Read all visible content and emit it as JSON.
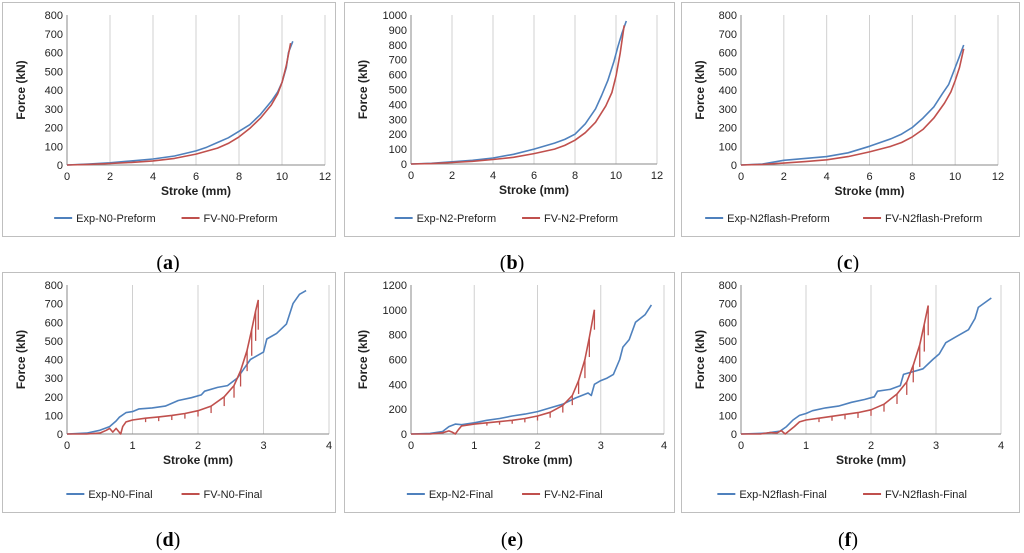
{
  "chart_data": [
    {
      "type": "line",
      "panel_label": "a",
      "xlabel": "Stroke (mm)",
      "ylabel": "Force (kN)",
      "xlim": [
        0,
        12
      ],
      "xticks": [
        0,
        2,
        4,
        6,
        8,
        10,
        12
      ],
      "ylim": [
        0,
        800
      ],
      "yticks": [
        0,
        100,
        200,
        300,
        400,
        500,
        600,
        700,
        800
      ],
      "grid": "vertical",
      "legend": "bottom",
      "series": [
        {
          "name": "Exp-N0-Preform",
          "color": "#4f81bd",
          "sawtooth": false,
          "x": [
            0,
            1,
            2,
            3,
            4,
            5,
            6,
            6.5,
            7,
            7.5,
            8,
            8.5,
            9,
            9.5,
            9.8,
            10,
            10.2,
            10.3,
            10.5
          ],
          "y": [
            0,
            5,
            12,
            22,
            32,
            48,
            75,
            95,
            120,
            145,
            180,
            215,
            270,
            340,
            390,
            440,
            520,
            600,
            660
          ]
        },
        {
          "name": "FV-N0-Preform",
          "color": "#c0504d",
          "sawtooth": false,
          "x": [
            0,
            1,
            2,
            3,
            4,
            5,
            6,
            7,
            7.5,
            8,
            8.5,
            9,
            9.5,
            9.8,
            10,
            10.2,
            10.4
          ],
          "y": [
            0,
            3,
            8,
            14,
            22,
            35,
            58,
            90,
            115,
            150,
            195,
            250,
            320,
            380,
            440,
            530,
            650
          ]
        }
      ]
    },
    {
      "type": "line",
      "panel_label": "b",
      "xlabel": "Stroke (mm)",
      "ylabel": "Force (kN)",
      "xlim": [
        0,
        12
      ],
      "xticks": [
        0,
        2,
        4,
        6,
        8,
        10,
        12
      ],
      "ylim": [
        0,
        1000
      ],
      "yticks": [
        0,
        100,
        200,
        300,
        400,
        500,
        600,
        700,
        800,
        900,
        1000
      ],
      "grid": "vertical",
      "legend": "bottom",
      "series": [
        {
          "name": "Exp-N2-Preform",
          "color": "#4f81bd",
          "sawtooth": false,
          "x": [
            0,
            1,
            2,
            3,
            4,
            5,
            6,
            7,
            7.5,
            8,
            8.5,
            9,
            9.3,
            9.6,
            9.9,
            10.1,
            10.3,
            10.5
          ],
          "y": [
            0,
            5,
            15,
            25,
            40,
            65,
            100,
            140,
            165,
            200,
            270,
            370,
            460,
            560,
            690,
            790,
            880,
            960
          ]
        },
        {
          "name": "FV-N2-Preform",
          "color": "#c0504d",
          "sawtooth": false,
          "x": [
            0,
            1,
            2,
            3,
            4,
            5,
            6,
            7,
            7.5,
            8,
            8.5,
            9,
            9.5,
            9.8,
            10,
            10.2,
            10.4
          ],
          "y": [
            0,
            3,
            10,
            18,
            30,
            45,
            70,
            100,
            125,
            160,
            210,
            280,
            390,
            480,
            590,
            740,
            930
          ]
        }
      ]
    },
    {
      "type": "line",
      "panel_label": "c",
      "xlabel": "Stroke (mm)",
      "ylabel": "Force (kN)",
      "xlim": [
        0,
        12
      ],
      "xticks": [
        0,
        2,
        4,
        6,
        8,
        10,
        12
      ],
      "ylim": [
        0,
        800
      ],
      "yticks": [
        0,
        100,
        200,
        300,
        400,
        500,
        600,
        700,
        800
      ],
      "grid": "vertical",
      "legend": "bottom",
      "series": [
        {
          "name": "Exp-N2flash-Preform",
          "color": "#4f81bd",
          "sawtooth": false,
          "x": [
            0,
            1,
            2,
            3,
            4,
            5,
            6,
            7,
            7.5,
            8,
            8.5,
            9,
            9.4,
            9.7,
            10,
            10.2,
            10.4
          ],
          "y": [
            0,
            5,
            25,
            35,
            45,
            65,
            100,
            140,
            165,
            200,
            250,
            310,
            380,
            430,
            520,
            580,
            640
          ]
        },
        {
          "name": "FV-N2flash-Preform",
          "color": "#c0504d",
          "sawtooth": false,
          "x": [
            0,
            1,
            2,
            3,
            4,
            5,
            6,
            7,
            7.5,
            8,
            8.5,
            9,
            9.5,
            9.8,
            10,
            10.2,
            10.4
          ],
          "y": [
            0,
            3,
            10,
            18,
            28,
            45,
            70,
            100,
            120,
            150,
            190,
            250,
            330,
            390,
            450,
            520,
            620
          ]
        }
      ]
    },
    {
      "type": "line",
      "panel_label": "d",
      "xlabel": "Stroke (mm)",
      "ylabel": "Force (kN)",
      "xlim": [
        0,
        4
      ],
      "xticks": [
        0,
        1,
        2,
        3,
        4
      ],
      "ylim": [
        0,
        800
      ],
      "yticks": [
        0,
        100,
        200,
        300,
        400,
        500,
        600,
        700,
        800
      ],
      "grid": "vertical",
      "legend": "bottom",
      "series": [
        {
          "name": "Exp-N0-Final",
          "color": "#4f81bd",
          "sawtooth": false,
          "x": [
            0,
            0.3,
            0.5,
            0.65,
            0.75,
            0.8,
            0.9,
            1.0,
            1.1,
            1.3,
            1.5,
            1.7,
            1.9,
            2.05,
            2.1,
            2.3,
            2.45,
            2.6,
            2.7,
            2.8,
            2.9,
            3.0,
            3.05,
            3.2,
            3.35,
            3.45,
            3.55,
            3.65
          ],
          "y": [
            0,
            5,
            20,
            40,
            70,
            90,
            115,
            120,
            135,
            140,
            150,
            180,
            195,
            210,
            230,
            250,
            260,
            300,
            350,
            400,
            420,
            440,
            510,
            540,
            590,
            700,
            750,
            770
          ]
        },
        {
          "name": "FV-N0-Final",
          "color": "#c0504d",
          "sawtooth": true,
          "x": [
            0,
            0.3,
            0.5,
            0.6,
            0.65,
            0.7,
            0.75,
            0.82,
            0.85,
            0.9,
            1.0,
            1.2,
            1.4,
            1.6,
            1.8,
            2.0,
            2.2,
            2.4,
            2.55,
            2.65,
            2.75,
            2.82,
            2.88,
            2.92
          ],
          "y": [
            0,
            0,
            5,
            20,
            30,
            10,
            30,
            0,
            40,
            65,
            75,
            85,
            92,
            100,
            110,
            125,
            150,
            200,
            260,
            340,
            450,
            560,
            660,
            720
          ]
        }
      ]
    },
    {
      "type": "line",
      "panel_label": "e",
      "xlabel": "Stroke (mm)",
      "ylabel": "Force (kN)",
      "xlim": [
        0,
        4
      ],
      "xticks": [
        0,
        1,
        2,
        3,
        4
      ],
      "ylim": [
        0,
        1200
      ],
      "yticks": [
        0,
        200,
        400,
        600,
        800,
        1000,
        1200
      ],
      "grid": "vertical",
      "legend": "bottom",
      "series": [
        {
          "name": "Exp-N2-Final",
          "color": "#4f81bd",
          "sawtooth": false,
          "x": [
            0,
            0.3,
            0.5,
            0.6,
            0.7,
            0.8,
            1.0,
            1.2,
            1.4,
            1.6,
            1.8,
            2.0,
            2.2,
            2.4,
            2.6,
            2.8,
            2.85,
            2.9,
            3.0,
            3.1,
            3.2,
            3.3,
            3.35,
            3.45,
            3.55,
            3.7,
            3.8
          ],
          "y": [
            0,
            5,
            20,
            60,
            80,
            75,
            90,
            110,
            125,
            145,
            160,
            180,
            210,
            240,
            290,
            330,
            310,
            400,
            430,
            450,
            480,
            600,
            700,
            760,
            900,
            960,
            1040
          ]
        },
        {
          "name": "FV-N2-Final",
          "color": "#c0504d",
          "sawtooth": true,
          "x": [
            0,
            0.3,
            0.5,
            0.6,
            0.65,
            0.7,
            0.75,
            0.8,
            1.0,
            1.2,
            1.4,
            1.6,
            1.8,
            2.0,
            2.2,
            2.4,
            2.55,
            2.65,
            2.75,
            2.82,
            2.9
          ],
          "y": [
            0,
            0,
            10,
            25,
            15,
            0,
            35,
            65,
            80,
            90,
            100,
            110,
            125,
            145,
            175,
            230,
            310,
            430,
            600,
            780,
            1000
          ]
        }
      ]
    },
    {
      "type": "line",
      "panel_label": "f",
      "xlabel": "Stroke (mm)",
      "ylabel": "Force (kN)",
      "xlim": [
        0,
        4
      ],
      "xticks": [
        0,
        1,
        2,
        3,
        4
      ],
      "ylim": [
        0,
        800
      ],
      "yticks": [
        0,
        100,
        200,
        300,
        400,
        500,
        600,
        700,
        800
      ],
      "grid": "vertical",
      "legend": "bottom",
      "series": [
        {
          "name": "Exp-N2flash-Final",
          "color": "#4f81bd",
          "sawtooth": false,
          "x": [
            0,
            0.4,
            0.5,
            0.6,
            0.7,
            0.8,
            0.9,
            1.0,
            1.1,
            1.3,
            1.5,
            1.7,
            1.9,
            2.05,
            2.1,
            2.3,
            2.45,
            2.5,
            2.6,
            2.7,
            2.8,
            2.95,
            3.05,
            3.15,
            3.3,
            3.5,
            3.6,
            3.65,
            3.85
          ],
          "y": [
            0,
            5,
            10,
            15,
            40,
            75,
            100,
            110,
            125,
            140,
            150,
            170,
            185,
            200,
            230,
            240,
            260,
            320,
            330,
            340,
            350,
            400,
            430,
            490,
            520,
            560,
            620,
            680,
            730
          ]
        },
        {
          "name": "FV-N2flash-Final",
          "color": "#c0504d",
          "sawtooth": true,
          "x": [
            0,
            0.3,
            0.45,
            0.55,
            0.62,
            0.68,
            0.75,
            0.82,
            0.9,
            1.0,
            1.2,
            1.4,
            1.6,
            1.8,
            2.0,
            2.2,
            2.4,
            2.55,
            2.65,
            2.75,
            2.82,
            2.88
          ],
          "y": [
            0,
            0,
            8,
            5,
            18,
            0,
            20,
            40,
            65,
            75,
            85,
            95,
            105,
            115,
            130,
            160,
            215,
            280,
            370,
            480,
            590,
            690
          ]
        }
      ]
    }
  ]
}
